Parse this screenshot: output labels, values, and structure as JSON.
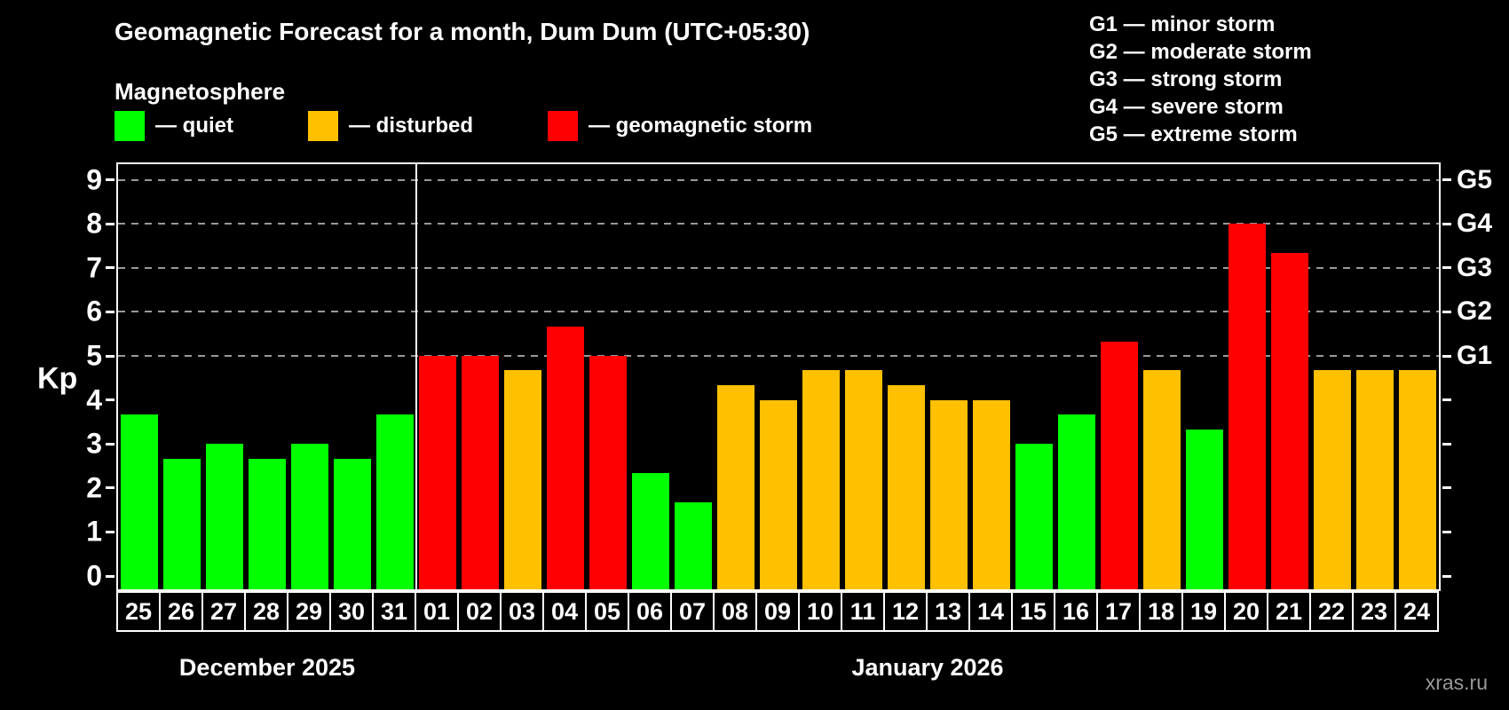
{
  "header": {
    "title": "Geomagnetic Forecast for a month, Dum Dum (UTC+05:30)",
    "subtitle": "Magnetosphere",
    "legend": [
      {
        "name": "quiet",
        "label": "— quiet",
        "color": "#00ff00"
      },
      {
        "name": "disturbed",
        "label": "— disturbed",
        "color": "#ffc000"
      },
      {
        "name": "storm",
        "label": "— geomagnetic storm",
        "color": "#ff0000"
      }
    ],
    "g_scale_legend": [
      "G1 — minor storm",
      "G2 — moderate storm",
      "G3 — strong storm",
      "G4 — severe storm",
      "G5 — extreme storm"
    ]
  },
  "chart_data": {
    "type": "bar",
    "ylabel": "Kp",
    "ylim": [
      0,
      9
    ],
    "yticks_left": [
      0,
      1,
      2,
      3,
      4,
      5,
      6,
      7,
      8,
      9
    ],
    "grid": "dashed horizontal lines at Kp 5..9 only",
    "grid_levels": [
      {
        "label": "G1",
        "kp": 5
      },
      {
        "label": "G2",
        "kp": 6
      },
      {
        "label": "G3",
        "kp": 7
      },
      {
        "label": "G4",
        "kp": 8
      },
      {
        "label": "G5",
        "kp": 9
      }
    ],
    "status_colors": {
      "quiet": "#00ff00",
      "disturbed": "#ffc000",
      "storm": "#ff0000"
    },
    "months": [
      {
        "label": "December 2025",
        "day_count": 7
      },
      {
        "label": "January 2026",
        "day_count": 24
      }
    ],
    "bars": [
      {
        "day": "25",
        "kp": 3.67,
        "status": "quiet"
      },
      {
        "day": "26",
        "kp": 2.67,
        "status": "quiet"
      },
      {
        "day": "27",
        "kp": 3.0,
        "status": "quiet"
      },
      {
        "day": "28",
        "kp": 2.67,
        "status": "quiet"
      },
      {
        "day": "29",
        "kp": 3.0,
        "status": "quiet"
      },
      {
        "day": "30",
        "kp": 2.67,
        "status": "quiet"
      },
      {
        "day": "31",
        "kp": 3.67,
        "status": "quiet"
      },
      {
        "day": "01",
        "kp": 5.0,
        "status": "storm"
      },
      {
        "day": "02",
        "kp": 5.0,
        "status": "storm"
      },
      {
        "day": "03",
        "kp": 4.67,
        "status": "disturbed"
      },
      {
        "day": "04",
        "kp": 5.67,
        "status": "storm"
      },
      {
        "day": "05",
        "kp": 5.0,
        "status": "storm"
      },
      {
        "day": "06",
        "kp": 2.33,
        "status": "quiet"
      },
      {
        "day": "07",
        "kp": 1.67,
        "status": "quiet"
      },
      {
        "day": "08",
        "kp": 4.33,
        "status": "disturbed"
      },
      {
        "day": "09",
        "kp": 4.0,
        "status": "disturbed"
      },
      {
        "day": "10",
        "kp": 4.67,
        "status": "disturbed"
      },
      {
        "day": "11",
        "kp": 4.67,
        "status": "disturbed"
      },
      {
        "day": "12",
        "kp": 4.33,
        "status": "disturbed"
      },
      {
        "day": "13",
        "kp": 4.0,
        "status": "disturbed"
      },
      {
        "day": "14",
        "kp": 4.0,
        "status": "disturbed"
      },
      {
        "day": "15",
        "kp": 3.0,
        "status": "quiet"
      },
      {
        "day": "16",
        "kp": 3.67,
        "status": "quiet"
      },
      {
        "day": "17",
        "kp": 5.33,
        "status": "storm"
      },
      {
        "day": "18",
        "kp": 4.67,
        "status": "disturbed"
      },
      {
        "day": "19",
        "kp": 3.33,
        "status": "quiet"
      },
      {
        "day": "20",
        "kp": 8.0,
        "status": "storm"
      },
      {
        "day": "21",
        "kp": 7.33,
        "status": "storm"
      },
      {
        "day": "22",
        "kp": 4.67,
        "status": "disturbed"
      },
      {
        "day": "23",
        "kp": 4.67,
        "status": "disturbed"
      },
      {
        "day": "24",
        "kp": 4.67,
        "status": "disturbed"
      }
    ]
  },
  "footer": {
    "watermark": "xras.ru"
  }
}
